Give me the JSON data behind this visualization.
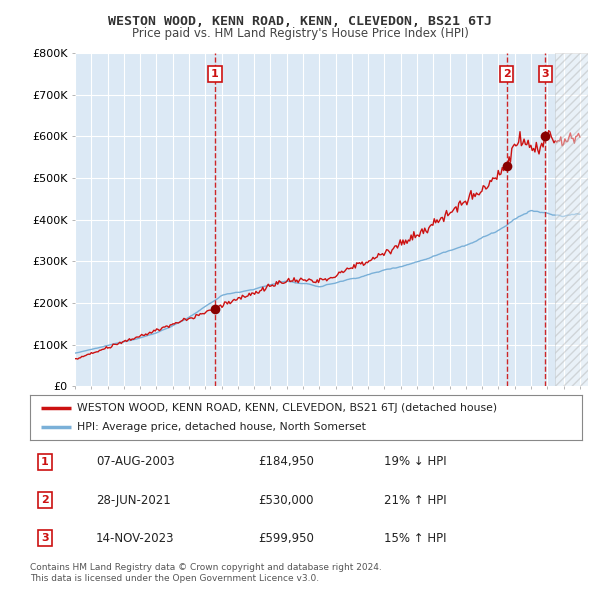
{
  "title": "WESTON WOOD, KENN ROAD, KENN, CLEVEDON, BS21 6TJ",
  "subtitle": "Price paid vs. HM Land Registry's House Price Index (HPI)",
  "ylim": [
    0,
    800000
  ],
  "yticks": [
    0,
    100000,
    200000,
    300000,
    400000,
    500000,
    600000,
    700000,
    800000
  ],
  "ytick_labels": [
    "£0",
    "£100K",
    "£200K",
    "£300K",
    "£400K",
    "£500K",
    "£600K",
    "£700K",
    "£800K"
  ],
  "xlim_start": 1995,
  "xlim_end": 2026.5,
  "background_color": "#ffffff",
  "plot_bg_color": "#dce9f5",
  "grid_color": "#ffffff",
  "hpi_color": "#7ab0d8",
  "price_color": "#cc1111",
  "sale_marker_color": "#880000",
  "vline_color": "#cc1111",
  "sales": [
    {
      "label": "1",
      "date_num": 2003.6,
      "price": 184950,
      "date_str": "07-AUG-2003",
      "pct": "19% ↓ HPI"
    },
    {
      "label": "2",
      "date_num": 2021.5,
      "price": 530000,
      "date_str": "28-JUN-2021",
      "pct": "21% ↑ HPI"
    },
    {
      "label": "3",
      "date_num": 2023.87,
      "price": 599950,
      "date_str": "14-NOV-2023",
      "pct": "15% ↑ HPI"
    }
  ],
  "legend_line1": "WESTON WOOD, KENN ROAD, KENN, CLEVEDON, BS21 6TJ (detached house)",
  "legend_line2": "HPI: Average price, detached house, North Somerset",
  "footer": "Contains HM Land Registry data © Crown copyright and database right 2024.\nThis data is licensed under the Open Government Licence v3.0.",
  "table_rows": [
    [
      "1",
      "07-AUG-2003",
      "£184,950",
      "19% ↓ HPI"
    ],
    [
      "2",
      "28-JUN-2021",
      "£530,000",
      "21% ↑ HPI"
    ],
    [
      "3",
      "14-NOV-2023",
      "£599,950",
      "15% ↑ HPI"
    ]
  ]
}
